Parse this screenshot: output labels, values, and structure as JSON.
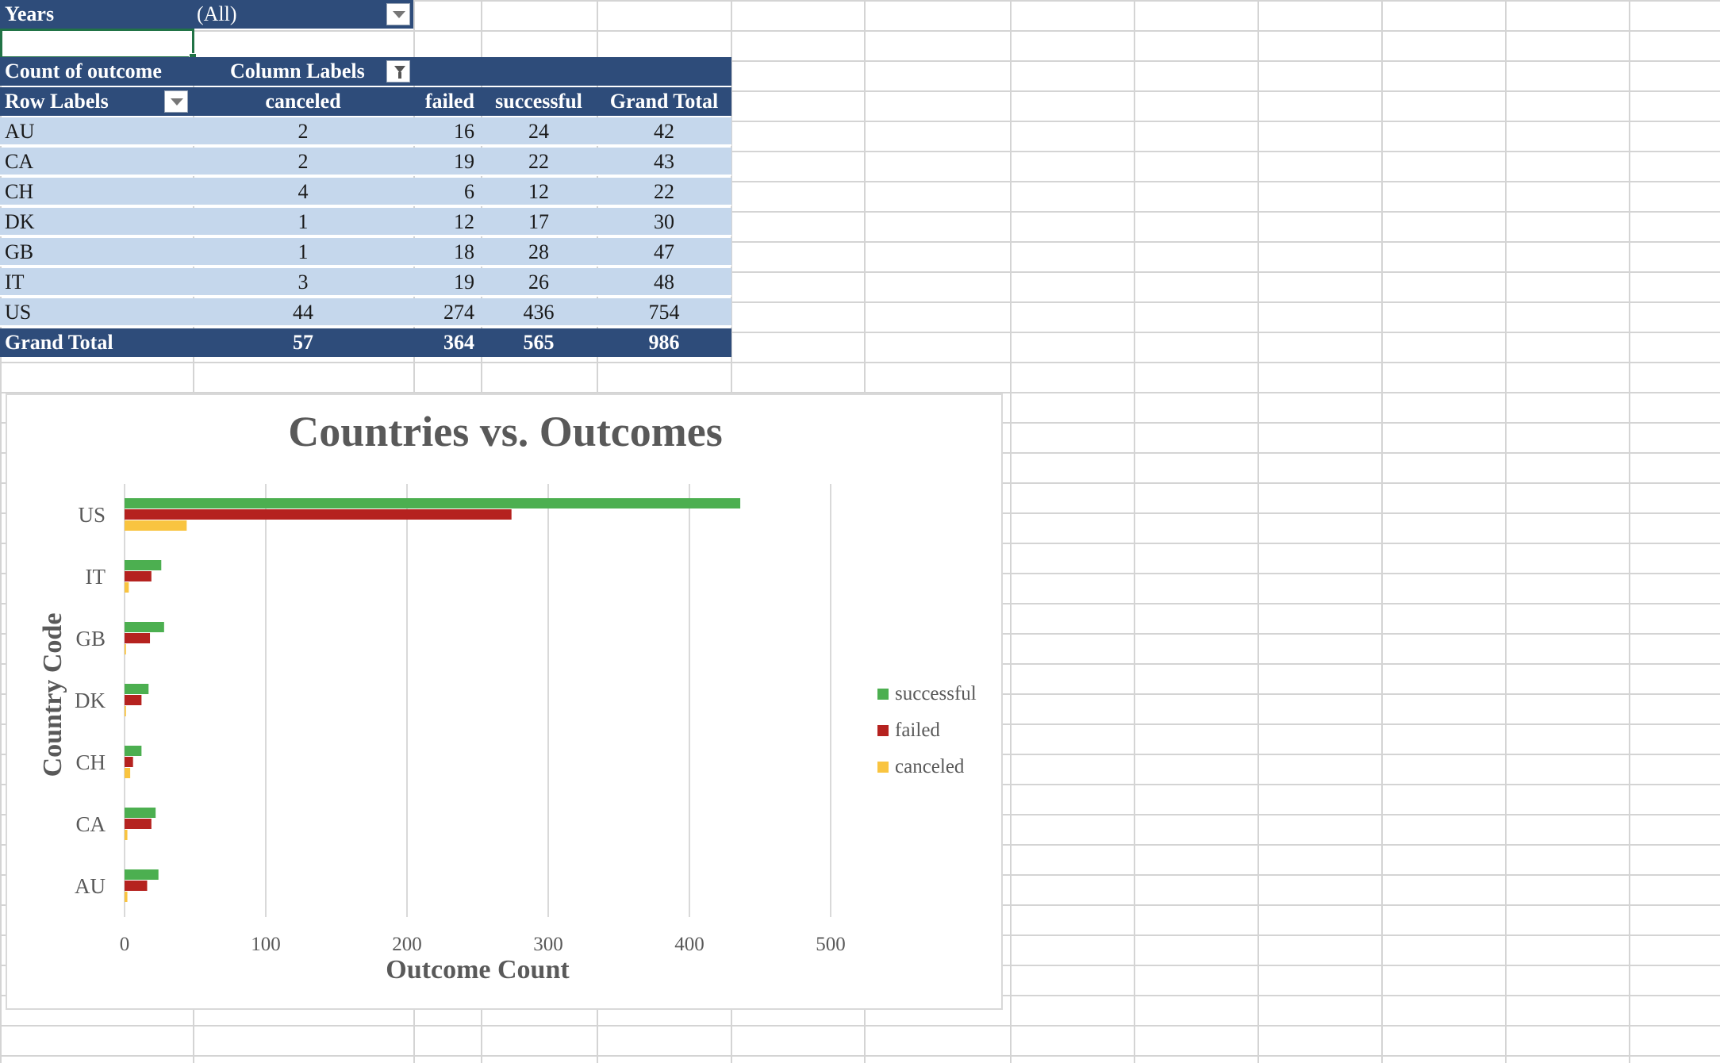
{
  "filter": {
    "field": "Years",
    "value": "(All)"
  },
  "pivot": {
    "value_field": "Count of outcome",
    "column_labels": "Column Labels",
    "row_labels": "Row Labels",
    "columns": [
      "canceled",
      "failed",
      "successful",
      "Grand Total"
    ],
    "rows": [
      {
        "label": "AU",
        "values": [
          "2",
          "16",
          "24",
          "42"
        ]
      },
      {
        "label": "CA",
        "values": [
          "2",
          "19",
          "22",
          "43"
        ]
      },
      {
        "label": "CH",
        "values": [
          "4",
          "6",
          "12",
          "22"
        ]
      },
      {
        "label": "DK",
        "values": [
          "1",
          "12",
          "17",
          "30"
        ]
      },
      {
        "label": "GB",
        "values": [
          "1",
          "18",
          "28",
          "47"
        ]
      },
      {
        "label": "IT",
        "values": [
          "3",
          "19",
          "26",
          "48"
        ]
      },
      {
        "label": "US",
        "values": [
          "44",
          "274",
          "436",
          "754"
        ]
      }
    ],
    "grand_total": {
      "label": "Grand Total",
      "values": [
        "57",
        "364",
        "565",
        "986"
      ]
    }
  },
  "colors": {
    "header_bg": "#2e4c7a",
    "row_bg": "#c5d7ec",
    "successful": "#4caf50",
    "failed": "#b5221f",
    "canceled": "#f9c440"
  },
  "chart_data": {
    "type": "bar",
    "orientation": "horizontal",
    "title": "Countries vs. Outcomes",
    "xlabel": "Outcome Count",
    "ylabel": "Country Code",
    "categories": [
      "AU",
      "CA",
      "CH",
      "DK",
      "GB",
      "IT",
      "US"
    ],
    "series": [
      {
        "name": "successful",
        "values": [
          24,
          22,
          12,
          17,
          28,
          26,
          436
        ],
        "color": "#4caf50"
      },
      {
        "name": "failed",
        "values": [
          16,
          19,
          6,
          12,
          18,
          19,
          274
        ],
        "color": "#b5221f"
      },
      {
        "name": "canceled",
        "values": [
          2,
          2,
          4,
          1,
          1,
          3,
          44
        ],
        "color": "#f9c440"
      }
    ],
    "xlim": [
      0,
      500
    ],
    "xticks": [
      "0",
      "100",
      "200",
      "300",
      "400",
      "500"
    ],
    "grid": true,
    "legend": "right"
  }
}
